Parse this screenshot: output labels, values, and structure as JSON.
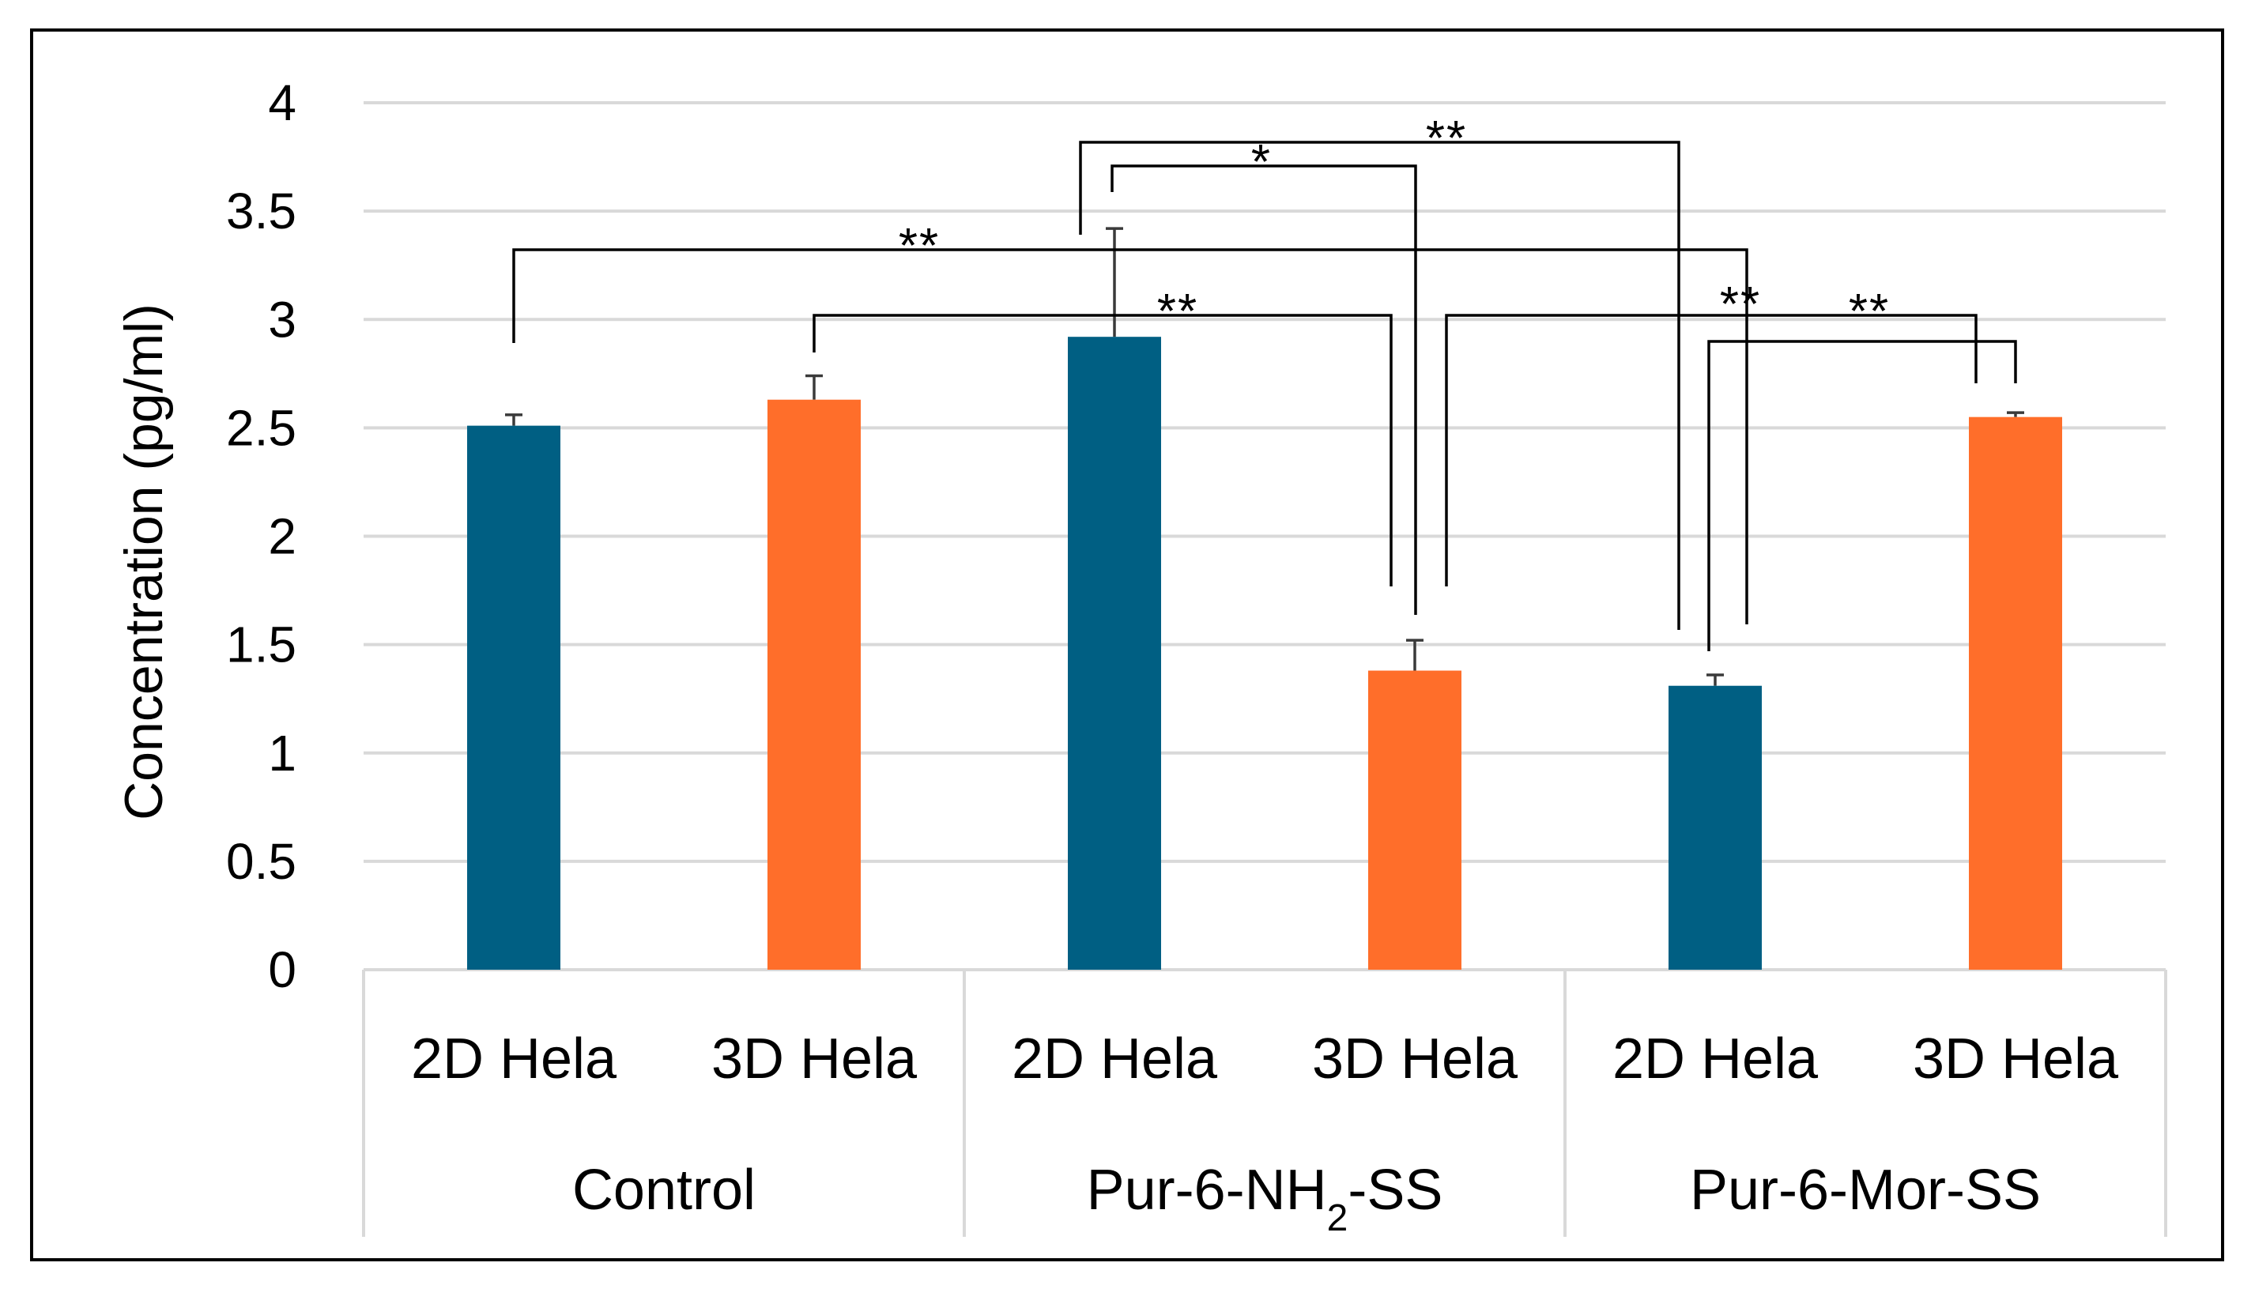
{
  "chart_data": {
    "type": "bar",
    "ylabel": "Concentration (pg/ml)",
    "ylim": [
      0,
      4
    ],
    "yticks": [
      "0",
      "0.5",
      "1",
      "1.5",
      "2",
      "2.5",
      "3",
      "3.5",
      "4"
    ],
    "grid": true,
    "legend": "none",
    "groups": [
      {
        "label": "Control",
        "label_main": "Control",
        "label_sub": "",
        "label_tail": ""
      },
      {
        "label": "Pur-6-NH2-SS",
        "label_main": "Pur-6-NH",
        "label_sub": "2",
        "label_tail": "-SS"
      },
      {
        "label": "Pur-6-Mor-SS",
        "label_main": "Pur-6-Mor-SS",
        "label_sub": "",
        "label_tail": ""
      }
    ],
    "bars": [
      {
        "group": 0,
        "category": "2D Hela",
        "value": 2.51,
        "error": 0.05,
        "color": "#005f83"
      },
      {
        "group": 0,
        "category": "3D Hela",
        "value": 2.63,
        "error": 0.11,
        "color": "#ff6e2a"
      },
      {
        "group": 1,
        "category": "2D Hela",
        "value": 2.92,
        "error": 0.5,
        "color": "#005f83"
      },
      {
        "group": 1,
        "category": "3D Hela",
        "value": 1.38,
        "error": 0.14,
        "color": "#ff6e2a"
      },
      {
        "group": 2,
        "category": "2D Hela",
        "value": 1.31,
        "error": 0.05,
        "color": "#005f83"
      },
      {
        "group": 2,
        "category": "3D Hela",
        "value": 2.55,
        "error": 0.02,
        "color": "#ff6e2a"
      }
    ],
    "significance": [
      {
        "from_bar": 0,
        "to_bar": 4,
        "label": "**"
      },
      {
        "from_bar": 1,
        "to_bar": 3,
        "label": "**"
      },
      {
        "from_bar": 2,
        "to_bar": 3,
        "label": "*"
      },
      {
        "from_bar": 2,
        "to_bar": 4,
        "label": "**"
      },
      {
        "from_bar": 3,
        "to_bar": 5,
        "label": "**"
      },
      {
        "from_bar": 4,
        "to_bar": 5,
        "label": "**"
      }
    ]
  }
}
